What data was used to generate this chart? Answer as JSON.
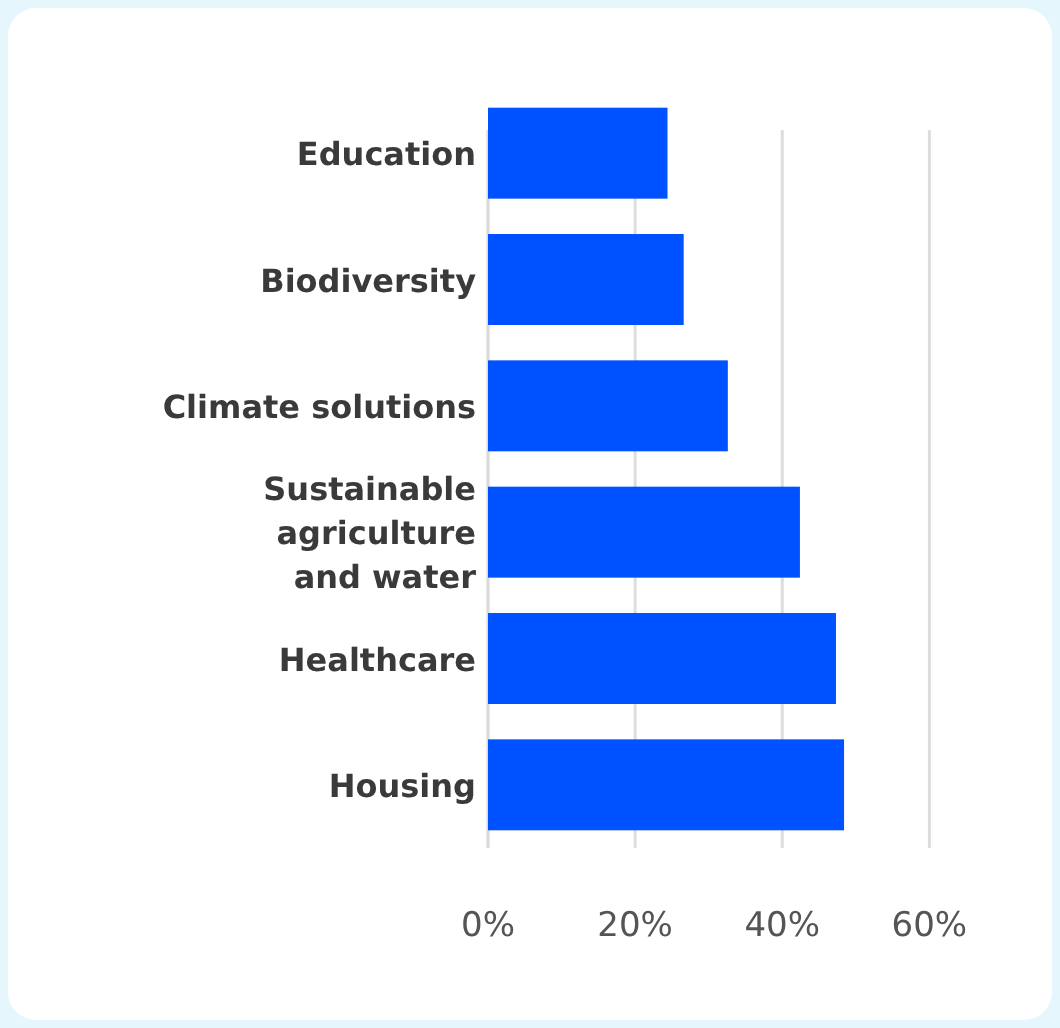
{
  "chart_data": {
    "type": "bar",
    "orientation": "horizontal",
    "categories": [
      "Education",
      "Biodiversity",
      "Climate solutions",
      "Sustainable agriculture and water",
      "Healthcare",
      "Housing"
    ],
    "values": [
      24.4,
      26.6,
      32.6,
      42.4,
      47.3,
      48.4
    ],
    "color": "#0051ff",
    "xlim": [
      0,
      60
    ],
    "xticks": [
      {
        "value": 0,
        "label": "0%"
      },
      {
        "value": 20,
        "label": "20%"
      },
      {
        "value": 40,
        "label": "40%"
      },
      {
        "value": 60,
        "label": "60%"
      }
    ],
    "grid": "x"
  }
}
